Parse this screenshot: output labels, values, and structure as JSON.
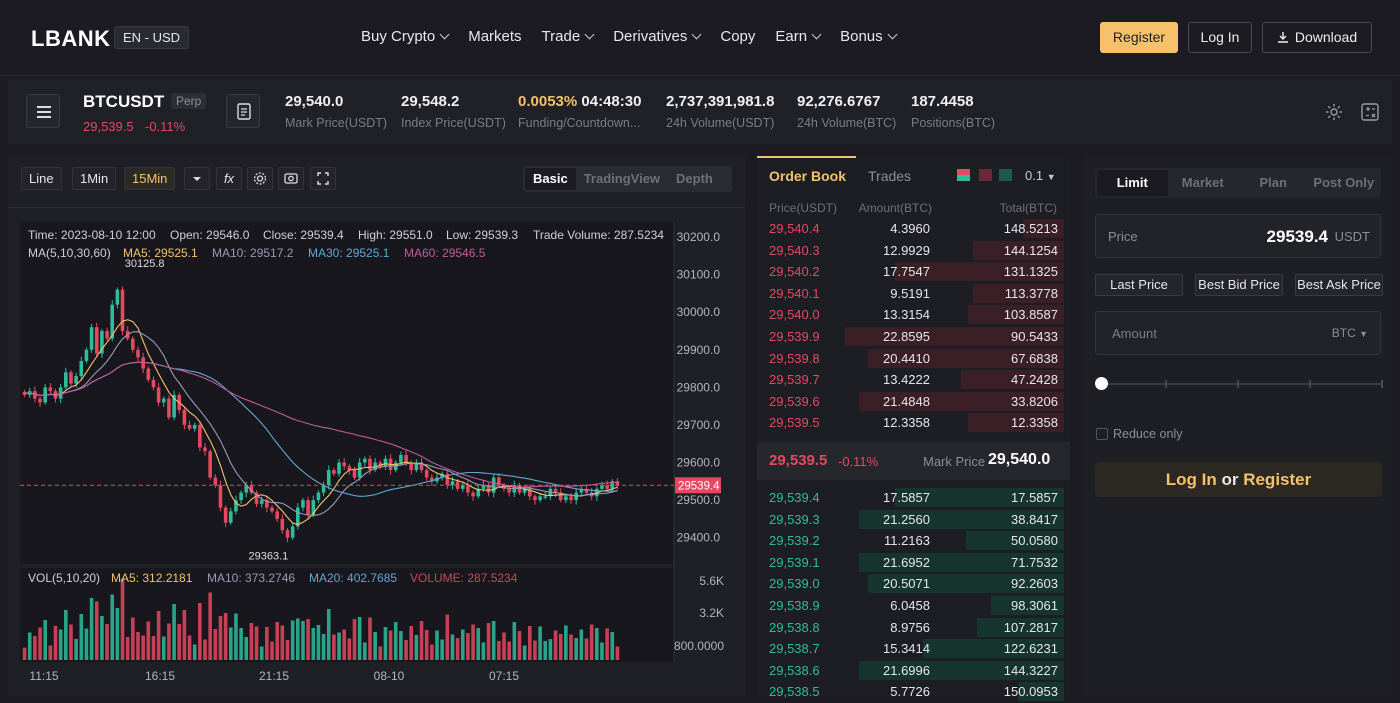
{
  "nav": {
    "logo": "LBANK",
    "lang": "EN - USD",
    "menu": [
      {
        "label": "Buy Crypto",
        "dropdown": true
      },
      {
        "label": "Markets",
        "dropdown": false
      },
      {
        "label": "Trade",
        "dropdown": true
      },
      {
        "label": "Derivatives",
        "dropdown": true
      },
      {
        "label": "Copy",
        "dropdown": false
      },
      {
        "label": "Earn",
        "dropdown": true
      },
      {
        "label": "Bonus",
        "dropdown": true
      }
    ],
    "register": "Register",
    "login": "Log In",
    "download": "Download"
  },
  "ticker": {
    "symbol": "BTCUSDT",
    "badge": "Perp",
    "last": "29,539.5",
    "change": "-0.11%",
    "stats": [
      {
        "value": "29,540.0",
        "label": "Mark Price(USDT)"
      },
      {
        "value": "29,548.2",
        "label": "Index Price(USDT)"
      },
      {
        "value": "0.0053%",
        "value2": "04:48:30",
        "label": "Funding/Countdown..."
      },
      {
        "value": "2,737,391,981.8",
        "label": "24h Volume(USDT)"
      },
      {
        "value": "92,276.6767",
        "label": "24h Volume(BTC)"
      },
      {
        "value": "187.4458",
        "label": "Positions(BTC)"
      }
    ]
  },
  "chart_toolbar": {
    "line": "Line",
    "interval1": "1Min",
    "interval15": "15Min",
    "fx": "fx",
    "views": [
      "Basic",
      "TradingView",
      "Depth"
    ],
    "active_view": "Basic"
  },
  "chart_info": {
    "time": "Time: 2023-08-10 12:00",
    "open": "Open: 29546.0",
    "close": "Close: 29539.4",
    "high": "High: 29551.0",
    "low": "Low: 29539.3",
    "volume": "Trade Volume: 287.5234",
    "ma_label": "MA(5,10,30,60)",
    "ma5": "MA5: 29525.1",
    "ma10": "MA10: 29517.2",
    "ma30": "MA30: 29525.1",
    "ma60": "MA60: 29546.5",
    "high_mark": "30125.8",
    "low_mark": "29363.1",
    "current": "29539.4",
    "vol_label": "VOL(5,10,20)",
    "vol_ma5": "MA5: 312.2181",
    "vol_ma10": "MA10: 373.2746",
    "vol_ma20": "MA20: 402.7685",
    "vol_volume": "VOLUME: 287.5234"
  },
  "chart_data": {
    "type": "candlestick",
    "price_ticks": [
      "30200.0",
      "30100.0",
      "30000.0",
      "29900.0",
      "29800.0",
      "29700.0",
      "29600.0",
      "29500.0",
      "29400.0"
    ],
    "volume_ticks": [
      "5.6K",
      "3.2K",
      "800.0000"
    ],
    "time_ticks": [
      "11:15",
      "16:15",
      "21:15",
      "08-10",
      "07:15"
    ],
    "ylim": [
      29330,
      30240
    ],
    "close": [
      29780,
      29790,
      29770,
      29760,
      29800,
      29790,
      29770,
      29800,
      29840,
      29810,
      29830,
      29870,
      29900,
      29960,
      29890,
      29950,
      29930,
      30020,
      30060,
      29950,
      29930,
      29900,
      29880,
      29850,
      29820,
      29800,
      29760,
      29770,
      29720,
      29780,
      29740,
      29700,
      29690,
      29700,
      29640,
      29630,
      29560,
      29540,
      29480,
      29440,
      29470,
      29500,
      29520,
      29540,
      29520,
      29490,
      29500,
      29480,
      29470,
      29450,
      29420,
      29400,
      29430,
      29480,
      29500,
      29460,
      29500,
      29520,
      29540,
      29580,
      29570,
      29600,
      29590,
      29580,
      29560,
      29600,
      29610,
      29580,
      29600,
      29590,
      29610,
      29580,
      29600,
      29620,
      29600,
      29580,
      29600,
      29580,
      29560,
      29550,
      29560,
      29570,
      29540,
      29550,
      29530,
      29540,
      29520,
      29510,
      29530,
      29540,
      29520,
      29560,
      29540,
      29530,
      29520,
      29540,
      29520,
      29530,
      29510,
      29500,
      29510,
      29510,
      29530,
      29520,
      29500,
      29510,
      29500,
      29520,
      29530,
      29520,
      29510,
      29530,
      29540,
      29530,
      29550,
      29540
    ]
  },
  "orderbook": {
    "tab_book": "Order Book",
    "tab_trades": "Trades",
    "precision": "0.1",
    "col_price": "Price(USDT)",
    "col_amount": "Amount(BTC)",
    "col_total": "Total(BTC)",
    "asks": [
      {
        "price": "29,540.4",
        "amount": "4.3960",
        "total": "148.5213",
        "depth": 0.18
      },
      {
        "price": "29,540.3",
        "amount": "12.9929",
        "total": "144.1254",
        "depth": 0.4
      },
      {
        "price": "29,540.2",
        "amount": "17.7547",
        "total": "131.1325",
        "depth": 0.74
      },
      {
        "price": "29,540.1",
        "amount": "9.5191",
        "total": "113.3778",
        "depth": 0.4
      },
      {
        "price": "29,540.0",
        "amount": "13.3154",
        "total": "103.8587",
        "depth": 0.42
      },
      {
        "price": "29,539.9",
        "amount": "22.8595",
        "total": "90.5433",
        "depth": 0.96
      },
      {
        "price": "29,539.8",
        "amount": "20.4410",
        "total": "67.6838",
        "depth": 0.86
      },
      {
        "price": "29,539.7",
        "amount": "13.4222",
        "total": "47.2428",
        "depth": 0.45
      },
      {
        "price": "29,539.6",
        "amount": "21.4848",
        "total": "33.8206",
        "depth": 0.9
      },
      {
        "price": "29,539.5",
        "amount": "12.3358",
        "total": "12.3358",
        "depth": 0.42
      }
    ],
    "mid_price": "29,539.5",
    "mid_change": "-0.11%",
    "mark_label": "Mark Price",
    "mark_value": "29,540.0",
    "bids": [
      {
        "price": "29,539.4",
        "amount": "17.5857",
        "total": "17.5857",
        "depth": 0.74
      },
      {
        "price": "29,539.3",
        "amount": "21.2560",
        "total": "38.8417",
        "depth": 0.9
      },
      {
        "price": "29,539.2",
        "amount": "11.2163",
        "total": "50.0580",
        "depth": 0.43
      },
      {
        "price": "29,539.1",
        "amount": "21.6952",
        "total": "71.7532",
        "depth": 0.9
      },
      {
        "price": "29,539.0",
        "amount": "20.5071",
        "total": "92.2603",
        "depth": 0.86
      },
      {
        "price": "29,538.9",
        "amount": "6.0458",
        "total": "98.3061",
        "depth": 0.32
      },
      {
        "price": "29,538.8",
        "amount": "8.9756",
        "total": "107.2817",
        "depth": 0.38
      },
      {
        "price": "29,538.7",
        "amount": "15.3414",
        "total": "122.6231",
        "depth": 0.62
      },
      {
        "price": "29,538.6",
        "amount": "21.6996",
        "total": "144.3227",
        "depth": 0.9
      },
      {
        "price": "29,538.5",
        "amount": "5.7726",
        "total": "150.0953",
        "depth": 0.2
      }
    ]
  },
  "trade": {
    "tabs": [
      "Limit",
      "Market",
      "Plan",
      "Post Only"
    ],
    "active_tab": "Limit",
    "price_label": "Price",
    "price_value": "29539.4",
    "price_unit": "USDT",
    "quick": [
      "Last Price",
      "Best Bid Price",
      "Best Ask Price"
    ],
    "amount_placeholder": "Amount",
    "amount_unit": "BTC",
    "slider_value": 0,
    "reduce_only": "Reduce only",
    "cta_login": "Log In",
    "cta_or": "or",
    "cta_register": "Register"
  },
  "colors": {
    "up": "#2ebd9b",
    "down": "#e64860",
    "accent": "#f5c26b"
  }
}
